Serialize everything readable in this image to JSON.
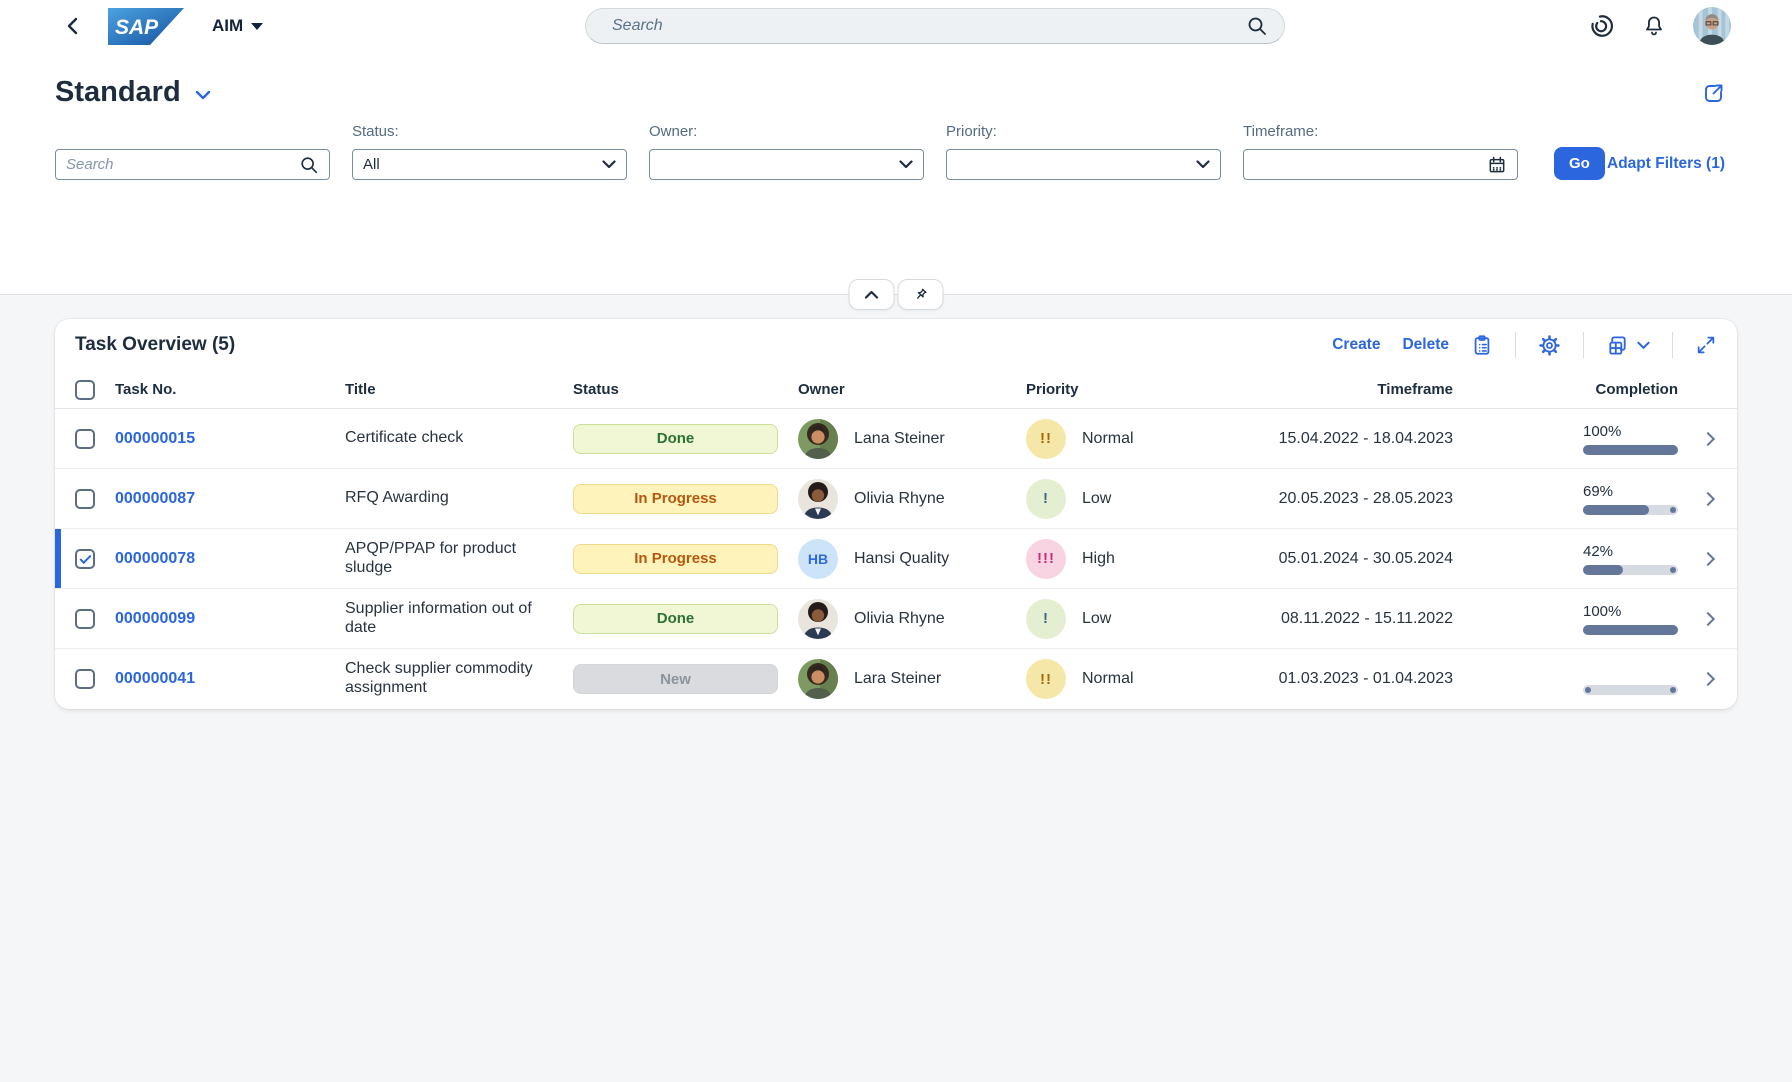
{
  "shell": {
    "product_name": "AIM",
    "search_placeholder": "Search"
  },
  "page": {
    "title": "Standard"
  },
  "filters": {
    "search_placeholder": "Search",
    "status_label": "Status:",
    "status_value": "All",
    "owner_label": "Owner:",
    "owner_value": "",
    "priority_label": "Priority:",
    "priority_value": "",
    "timeframe_label": "Timeframe:",
    "timeframe_value": "",
    "go_label": "Go",
    "adapt_filters_label": "Adapt Filters (1)"
  },
  "table": {
    "title": "Task Overview (5)",
    "toolbar": {
      "create_label": "Create",
      "delete_label": "Delete"
    },
    "columns": {
      "task_no": "Task No.",
      "title": "Title",
      "status": "Status",
      "owner": "Owner",
      "priority": "Priority",
      "timeframe": "Timeframe",
      "completion": "Completion"
    },
    "rows": [
      {
        "task_no": "000000015",
        "title": "Certificate check",
        "status": "Done",
        "status_type": "done",
        "owner": "Lana Steiner",
        "avatar": "woman-green",
        "avatar_initials": "",
        "priority": "Normal",
        "priority_level": "normal",
        "priority_glyph": "!!",
        "timeframe": "15.04.2022 - 18.04.2023",
        "completion_label": "100%",
        "completion_value": 100,
        "selected": false
      },
      {
        "task_no": "000000087",
        "title": "RFQ Awarding",
        "status": "In Progress",
        "status_type": "in-progress",
        "owner": "Olivia Rhyne",
        "avatar": "woman-blazer",
        "avatar_initials": "",
        "priority": "Low",
        "priority_level": "low",
        "priority_glyph": "!",
        "timeframe": "20.05.2023 - 28.05.2023",
        "completion_label": "69%",
        "completion_value": 69,
        "selected": false
      },
      {
        "task_no": "000000078",
        "title": "APQP/PPAP for product sludge",
        "status": "In Progress",
        "status_type": "in-progress",
        "owner": "Hansi Quality",
        "avatar": "initials",
        "avatar_initials": "HB",
        "priority": "High",
        "priority_level": "high",
        "priority_glyph": "!!!",
        "timeframe": "05.01.2024 - 30.05.2024",
        "completion_label": "42%",
        "completion_value": 42,
        "selected": true
      },
      {
        "task_no": "000000099",
        "title": "Supplier information out of date",
        "status": "Done",
        "status_type": "done",
        "owner": "Olivia Rhyne",
        "avatar": "woman-blazer",
        "avatar_initials": "",
        "priority": "Low",
        "priority_level": "low",
        "priority_glyph": "!",
        "timeframe": "08.11.2022 - 15.11.2022",
        "completion_label": "100%",
        "completion_value": 100,
        "selected": false
      },
      {
        "task_no": "000000041",
        "title": "Check supplier commodity assignment",
        "status": "New",
        "status_type": "new",
        "owner": "Lara Steiner",
        "avatar": "woman-green",
        "avatar_initials": "",
        "priority": "Normal",
        "priority_level": "normal",
        "priority_glyph": "!!",
        "timeframe": "01.03.2023 - 01.04.2023",
        "completion_label": "",
        "completion_value": 0,
        "selected": false
      }
    ]
  },
  "colors": {
    "accent": "#2b66df",
    "status_done_text": "#2b7235",
    "status_in_progress_text": "#b4590f",
    "status_new_text": "#8b949e",
    "priority_normal": "#a26a0c",
    "priority_low": "#3b6a80",
    "priority_high": "#c62e76",
    "progress_fill": "#64779b"
  }
}
